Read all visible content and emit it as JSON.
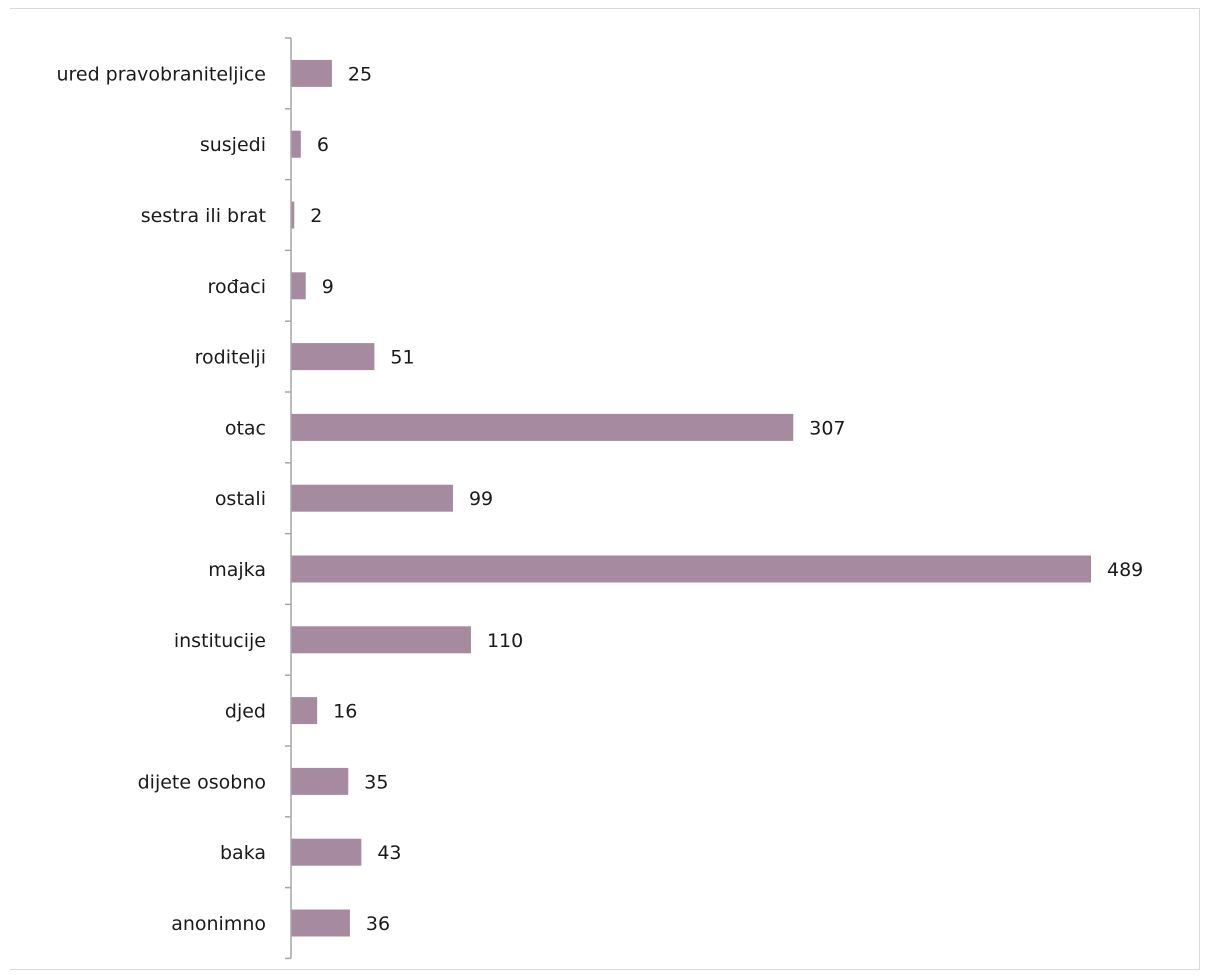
{
  "chart_data": {
    "type": "bar",
    "orientation": "horizontal",
    "categories": [
      "ured pravobraniteljice",
      "susjedi",
      "sestra ili brat",
      "rođaci",
      "roditelji",
      "otac",
      "ostali",
      "majka",
      "institucije",
      "djed",
      "dijete osobno",
      "baka",
      "anonimno"
    ],
    "values": [
      25,
      6,
      2,
      9,
      51,
      307,
      99,
      489,
      110,
      16,
      35,
      43,
      36
    ],
    "value_labels": [
      "25",
      "6",
      "2",
      "9",
      "51",
      "307",
      "99",
      "489",
      "110",
      "16",
      "35",
      "43",
      "36"
    ],
    "bar_color": "#a68ba0",
    "axis_color": "#a6a6a6",
    "title": "",
    "xlabel": "",
    "ylabel": "",
    "xlim": [
      0,
      489
    ],
    "grid": false,
    "legend": "none",
    "data_labels": true
  }
}
